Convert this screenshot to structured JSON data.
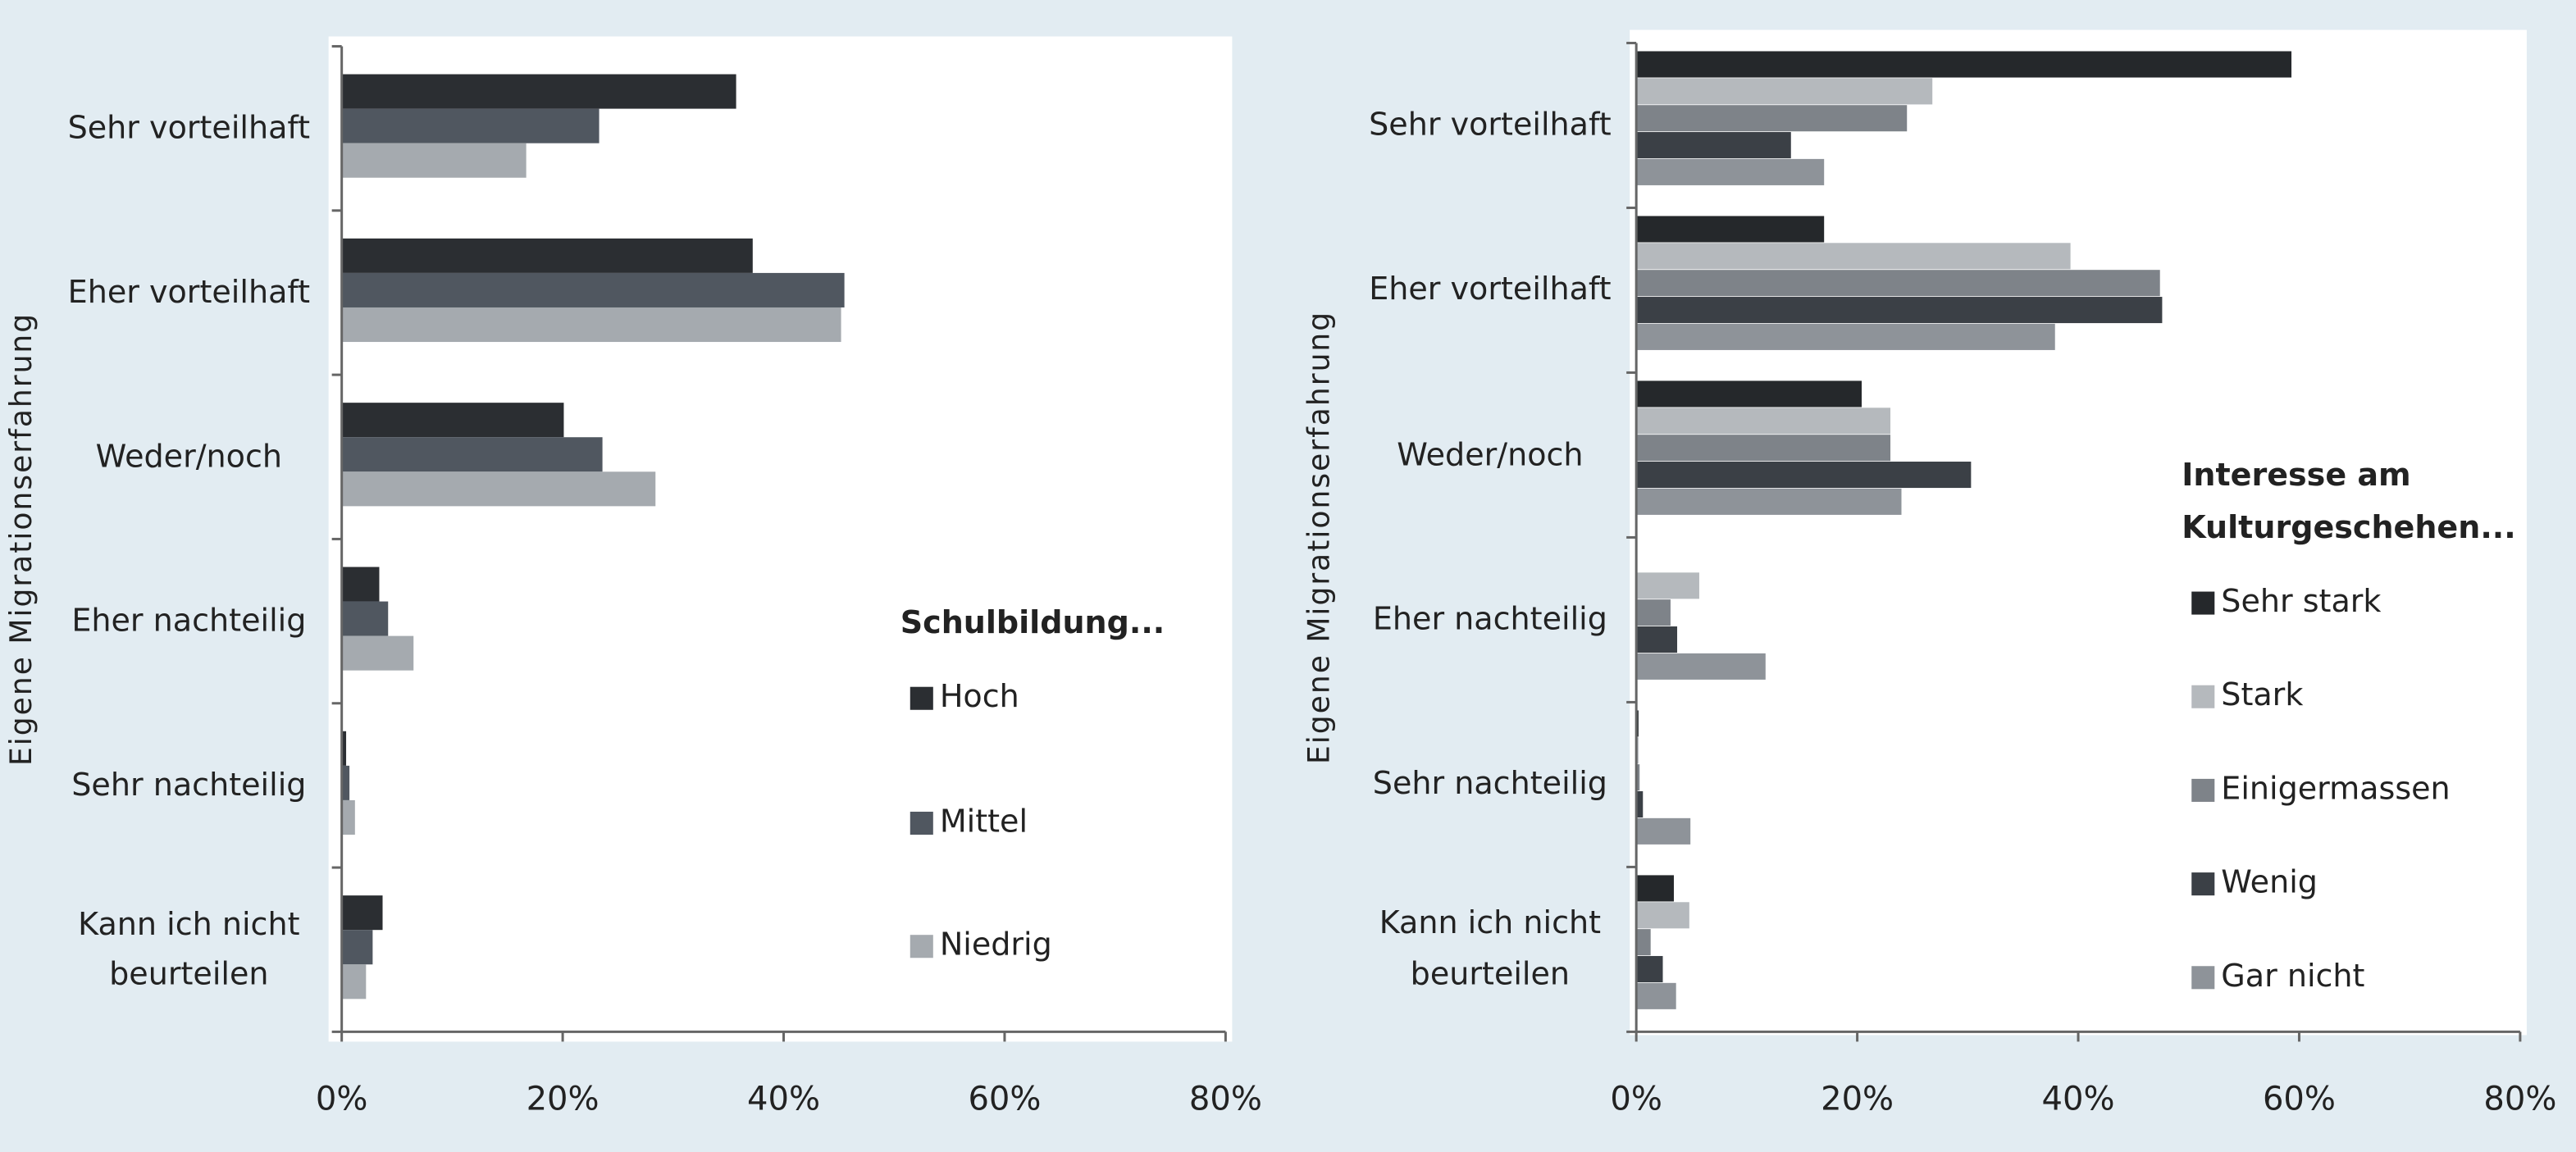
{
  "chart_data": [
    {
      "type": "bar",
      "orientation": "horizontal",
      "ylabel": "Eigene Migrationserfahrung",
      "categories": [
        "Sehr vorteilhaft",
        "Eher vorteilhaft",
        "Weder/noch",
        "Eher nachteilig",
        "Sehr nachteilig",
        "Kann ich nicht beurteilen"
      ],
      "legend_title": [
        "Schulbildung..."
      ],
      "legend": "right",
      "series": [
        {
          "name": "Hoch",
          "color": "#2b2e32",
          "values": [
            35.7,
            37.2,
            20.1,
            3.4,
            0.4,
            3.7
          ]
        },
        {
          "name": "Mittel",
          "color": "#505760",
          "values": [
            23.3,
            45.5,
            23.6,
            4.2,
            0.7,
            2.8
          ]
        },
        {
          "name": "Niedrig",
          "color": "#a5aaaf",
          "values": [
            16.7,
            45.2,
            28.4,
            6.5,
            1.2,
            2.2
          ]
        }
      ],
      "xlim": [
        0,
        80
      ],
      "xticks": [
        {
          "value": 0,
          "label": "0%"
        },
        {
          "value": 20,
          "label": "20%"
        },
        {
          "value": 40,
          "label": "40%"
        },
        {
          "value": 60,
          "label": "60%"
        },
        {
          "value": 80,
          "label": "80%"
        }
      ]
    },
    {
      "type": "bar",
      "orientation": "horizontal",
      "ylabel": "Eigene Migrationserfahrung",
      "categories": [
        "Sehr vorteilhaft",
        "Eher vorteilhaft",
        "Weder/noch",
        "Eher nachteilig",
        "Sehr nachteilig",
        "Kann ich nicht beurteilen"
      ],
      "legend_title": [
        "Interesse am",
        "Kulturgeschehen..."
      ],
      "legend": "right",
      "series": [
        {
          "name": "Sehr stark",
          "color": "#25282b",
          "values": [
            59.3,
            17.0,
            20.4,
            0,
            0.2,
            3.4
          ]
        },
        {
          "name": "Stark",
          "color": "#b5b9bd",
          "values": [
            26.8,
            39.3,
            23.0,
            5.7,
            0.2,
            4.8
          ]
        },
        {
          "name": "Einigermassen",
          "color": "#7e8389",
          "values": [
            24.5,
            47.4,
            23.0,
            3.1,
            0.3,
            1.3
          ]
        },
        {
          "name": "Wenig",
          "color": "#3b4046",
          "values": [
            14.0,
            47.6,
            30.3,
            3.7,
            0.6,
            2.4
          ]
        },
        {
          "name": "Gar nicht",
          "color": "#8e9399",
          "values": [
            17.0,
            37.9,
            24.0,
            11.7,
            4.9,
            3.6
          ]
        }
      ],
      "xlim": [
        0,
        80
      ],
      "xticks": [
        {
          "value": 0,
          "label": "0%"
        },
        {
          "value": 20,
          "label": "20%"
        },
        {
          "value": 40,
          "label": "40%"
        },
        {
          "value": 60,
          "label": "60%"
        },
        {
          "value": 80,
          "label": "80%"
        }
      ]
    }
  ]
}
